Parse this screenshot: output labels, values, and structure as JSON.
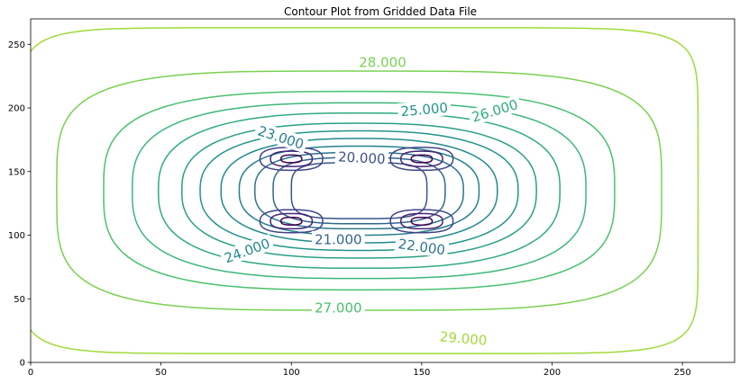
{
  "chart_data": {
    "type": "contour",
    "title": "Contour Plot from Gridded Data File",
    "xlabel": "",
    "ylabel": "",
    "xlim": [
      0,
      270
    ],
    "ylim": [
      0,
      270
    ],
    "x_ticks": [
      0,
      50,
      100,
      150,
      200,
      250
    ],
    "y_ticks": [
      0,
      50,
      100,
      150,
      200,
      250
    ],
    "grid": false,
    "colors": {
      "low": "#440154",
      "mid": "#21918c",
      "high": "#bddf26",
      "top": "#fde725"
    },
    "contour_levels": [
      {
        "level": 29.0,
        "label": "29.000",
        "color": "#a0da39",
        "rx": 130,
        "ry": 128,
        "power": 9
      },
      {
        "level": 28.0,
        "label": "28.000",
        "color": "#7ad151",
        "rx": 116,
        "ry": 94,
        "power": 4
      },
      {
        "level": 27.0,
        "label": "27.000",
        "color": "#4ac16d",
        "rx": 98,
        "ry": 78,
        "power": 3.2
      },
      {
        "level": 26.5,
        "label": "",
        "color": "#3bb77a",
        "rx": 87,
        "ry": 69,
        "power": 2.9
      },
      {
        "level": 26.0,
        "label": "26.000",
        "color": "#2eab7e",
        "rx": 77,
        "ry": 61,
        "power": 2.7
      },
      {
        "level": 25.5,
        "label": "",
        "color": "#27a085",
        "rx": 68,
        "ry": 53,
        "power": 2.6
      },
      {
        "level": 25.0,
        "label": "25.000",
        "color": "#21958a",
        "rx": 61,
        "ry": 47,
        "power": 2.5
      },
      {
        "level": 24.0,
        "label": "24.000",
        "color": "#208a8c",
        "rx": 53,
        "ry": 41,
        "power": 2.5
      },
      {
        "level": 23.0,
        "label": "23.000",
        "color": "#23808e",
        "rx": 46,
        "ry": 35,
        "power": 2.6
      },
      {
        "level": 22.0,
        "label": "22.000",
        "color": "#2a768e",
        "rx": 40,
        "ry": 30,
        "power": 2.8
      },
      {
        "level": 21.0,
        "label": "21.000",
        "color": "#31678e",
        "rx": 33,
        "ry": 26,
        "power": 3.2
      },
      {
        "level": 20.0,
        "label": "20.000",
        "color": "#3b528b",
        "rx": 26,
        "ry": 22,
        "power": 4
      }
    ],
    "labels": [
      {
        "text": "28.000",
        "x": 135,
        "y": 236,
        "angle": 0,
        "color": "#7ad151"
      },
      {
        "text": "26.000",
        "x": 178,
        "y": 198,
        "angle": 17,
        "color": "#2eab7e"
      },
      {
        "text": "25.000",
        "x": 151,
        "y": 199,
        "angle": 5,
        "color": "#21958a"
      },
      {
        "text": "23.000",
        "x": 96,
        "y": 177,
        "angle": -18,
        "color": "#23808e"
      },
      {
        "text": "20.000",
        "x": 127,
        "y": 161,
        "angle": -3,
        "color": "#3b528b"
      },
      {
        "text": "21.000",
        "x": 118,
        "y": 97,
        "angle": 0,
        "color": "#31678e"
      },
      {
        "text": "22.000",
        "x": 150,
        "y": 91,
        "angle": -8,
        "color": "#2a768e"
      },
      {
        "text": "24.000",
        "x": 83,
        "y": 88,
        "angle": 20,
        "color": "#208a8c"
      },
      {
        "text": "27.000",
        "x": 118,
        "y": 43,
        "angle": 0,
        "color": "#4ac16d"
      },
      {
        "text": "29.000",
        "x": 166,
        "y": 19,
        "angle": -5,
        "color": "#a0da39"
      }
    ],
    "peaks": [
      {
        "x": 100,
        "y": 160,
        "levels": [
          {
            "rx": 12,
            "ry": 9,
            "color": "#414487"
          },
          {
            "rx": 8,
            "ry": 6,
            "color": "#482576"
          },
          {
            "rx": 4,
            "ry": 3,
            "color": "#440154"
          }
        ]
      },
      {
        "x": 150,
        "y": 160,
        "levels": [
          {
            "rx": 12,
            "ry": 9,
            "color": "#414487"
          },
          {
            "rx": 8,
            "ry": 6,
            "color": "#482576"
          },
          {
            "rx": 4,
            "ry": 3,
            "color": "#440154"
          }
        ]
      },
      {
        "x": 100,
        "y": 111,
        "levels": [
          {
            "rx": 12,
            "ry": 9,
            "color": "#414487"
          },
          {
            "rx": 8,
            "ry": 6,
            "color": "#482576"
          },
          {
            "rx": 4,
            "ry": 3,
            "color": "#440154"
          }
        ]
      },
      {
        "x": 150,
        "y": 111,
        "levels": [
          {
            "rx": 12,
            "ry": 9,
            "color": "#414487"
          },
          {
            "rx": 8,
            "ry": 6,
            "color": "#482576"
          },
          {
            "rx": 4,
            "ry": 3,
            "color": "#440154"
          }
        ]
      }
    ],
    "center": [
      126,
      135
    ]
  }
}
